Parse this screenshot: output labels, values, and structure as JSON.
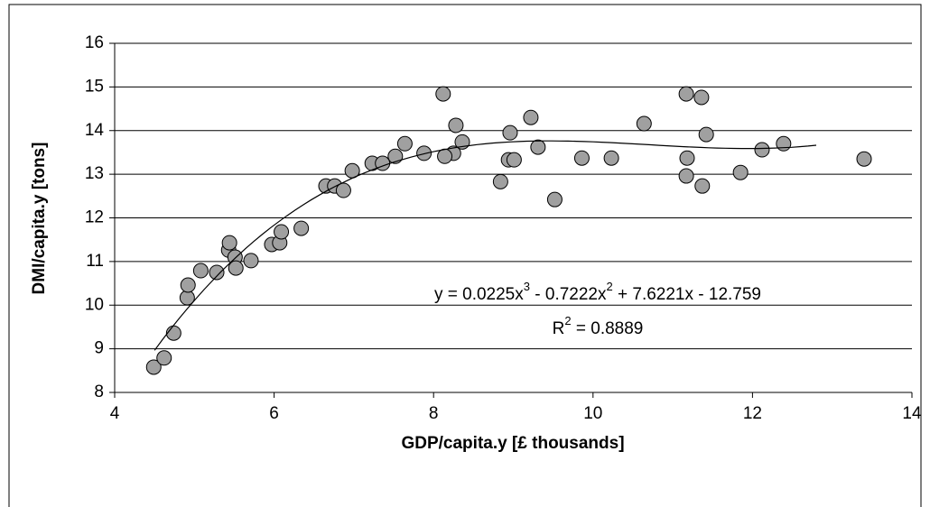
{
  "chart_data": {
    "type": "scatter",
    "x_label": "GDP/capita.y [£ thousands]",
    "y_label": "DMI/capita.y [tons]",
    "series": [
      {
        "color": "#a0a0a0",
        "x": [
          4.49,
          4.62,
          4.74,
          4.91,
          4.92,
          5.08,
          5.28,
          5.43,
          5.44,
          5.51,
          5.52,
          5.71,
          5.97,
          6.07,
          6.09,
          6.34,
          6.65,
          6.76,
          6.87,
          6.98,
          7.23,
          7.36,
          7.52,
          7.64,
          7.88,
          8.25,
          8.28,
          8.12,
          8.14,
          8.36,
          8.84,
          8.96,
          8.94,
          9.01,
          9.22,
          9.31,
          9.52,
          9.86,
          10.23,
          10.64,
          11.17,
          11.17,
          11.18,
          11.36,
          11.37,
          11.42,
          11.85,
          12.12,
          12.39,
          13.4
        ],
        "values": [
          8.58,
          8.79,
          9.36,
          10.17,
          10.46,
          10.79,
          10.75,
          11.26,
          11.43,
          11.1,
          10.85,
          11.02,
          11.39,
          11.43,
          11.68,
          11.76,
          12.73,
          12.73,
          12.63,
          13.08,
          13.25,
          13.25,
          13.41,
          13.7,
          13.48,
          13.48,
          14.12,
          14.84,
          13.41,
          13.74,
          12.83,
          13.95,
          13.33,
          13.33,
          14.3,
          13.62,
          12.42,
          13.37,
          13.37,
          14.16,
          14.84,
          12.96,
          13.37,
          14.76,
          12.73,
          13.91,
          13.04,
          13.56,
          13.7,
          13.35
        ]
      }
    ],
    "trendline": {
      "coefficients": [
        0.0225,
        -0.7222,
        7.6221,
        -12.759
      ],
      "x_range": [
        4.5,
        12.8
      ],
      "color": "#000000",
      "equation": [
        "y = 0.0225x",
        "3",
        " - 0.7222x",
        "2",
        " + 7.6221x - 12.759"
      ],
      "r_squared": [
        "R",
        "2",
        " = 0.8889"
      ]
    },
    "xlim": [
      4,
      14
    ],
    "xticks": [
      4,
      6,
      8,
      10,
      12,
      14
    ],
    "ylim": [
      8,
      16
    ],
    "yticks": [
      8,
      9,
      10,
      11,
      12,
      13,
      14,
      15,
      16
    ],
    "grid": true
  }
}
